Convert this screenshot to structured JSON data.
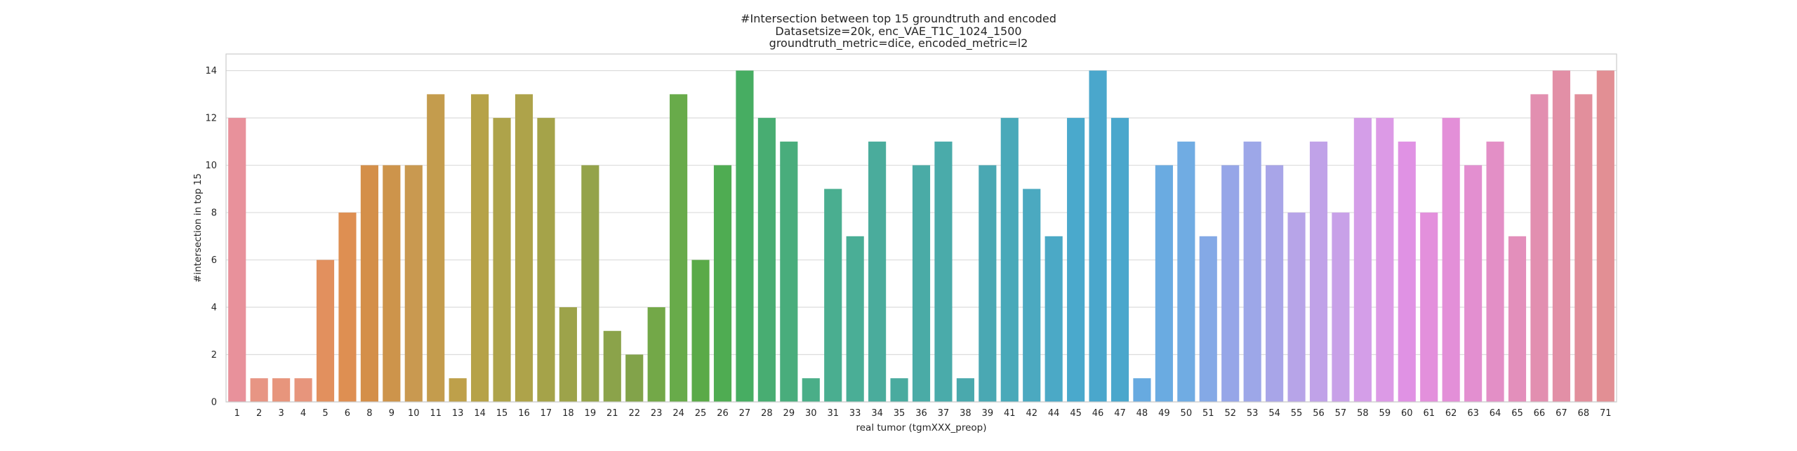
{
  "chart_data": {
    "type": "bar",
    "title_lines": [
      "#Intersection between top 15 groundtruth and encoded",
      "Datasetsize=20k, enc_VAE_T1C_1024_1500",
      "groundtruth_metric=dice, encoded_metric=l2"
    ],
    "xlabel": "real tumor (tgmXXX_preop)",
    "ylabel": "#intersection in top 15",
    "ylim": [
      0,
      14.7
    ],
    "yticks": [
      0,
      2,
      4,
      6,
      8,
      10,
      12,
      14
    ],
    "grid": true,
    "categories": [
      "1",
      "2",
      "3",
      "4",
      "5",
      "6",
      "8",
      "9",
      "10",
      "11",
      "13",
      "14",
      "15",
      "16",
      "17",
      "18",
      "19",
      "21",
      "22",
      "23",
      "24",
      "25",
      "26",
      "27",
      "28",
      "29",
      "30",
      "31",
      "33",
      "34",
      "35",
      "36",
      "37",
      "38",
      "39",
      "41",
      "42",
      "44",
      "45",
      "46",
      "47",
      "48",
      "49",
      "50",
      "51",
      "52",
      "53",
      "54",
      "55",
      "56",
      "57",
      "58",
      "59",
      "60",
      "61",
      "62",
      "63",
      "64",
      "65",
      "66",
      "67",
      "68",
      "71"
    ],
    "values": [
      12,
      1,
      1,
      1,
      6,
      8,
      10,
      10,
      10,
      13,
      1,
      13,
      12,
      13,
      12,
      4,
      10,
      3,
      2,
      4,
      13,
      6,
      10,
      14,
      12,
      11,
      1,
      9,
      7,
      11,
      1,
      10,
      11,
      1,
      10,
      12,
      9,
      7,
      12,
      14,
      12,
      1,
      10,
      11,
      7,
      10,
      11,
      10,
      8,
      11,
      8,
      12,
      12,
      11,
      8,
      12,
      10,
      11,
      7,
      13,
      14,
      13,
      14
    ],
    "colors": [
      "#e8919b",
      "#e79584",
      "#e7957c",
      "#e7957c",
      "#e2905e",
      "#de8f52",
      "#d48f49",
      "#cd944b",
      "#c99950",
      "#c49c4d",
      "#bea04a",
      "#b6a248",
      "#aea34a",
      "#aea34a",
      "#a5a349",
      "#9da34a",
      "#94a34a",
      "#8ba34a",
      "#82a34a",
      "#73a848",
      "#68ab4a",
      "#5aaa48",
      "#4fac52",
      "#47ad62",
      "#48ad72",
      "#49ad7c",
      "#4aae88",
      "#4aae90",
      "#4aae96",
      "#4aac9c",
      "#4aab9f",
      "#4aaba6",
      "#4aabaa",
      "#4aa9ad",
      "#4aa8b3",
      "#49a9b9",
      "#4ba9c0",
      "#4ba9c6",
      "#4aa9cc",
      "#4aa7cc",
      "#4aa7cc",
      "#67aae0",
      "#6aabe1",
      "#70ace3",
      "#84a9e6",
      "#96a6e8",
      "#9da7e8",
      "#a8a5e8",
      "#b7a4e8",
      "#c0a2e8",
      "#c8a1e8",
      "#d49ee8",
      "#dc9ae6",
      "#e092e4",
      "#e390dc",
      "#e38fd8",
      "#e38fd0",
      "#e38fc6",
      "#e38fbb",
      "#e28fb0",
      "#e28fa6",
      "#e28f9c",
      "#e28f94"
    ]
  }
}
